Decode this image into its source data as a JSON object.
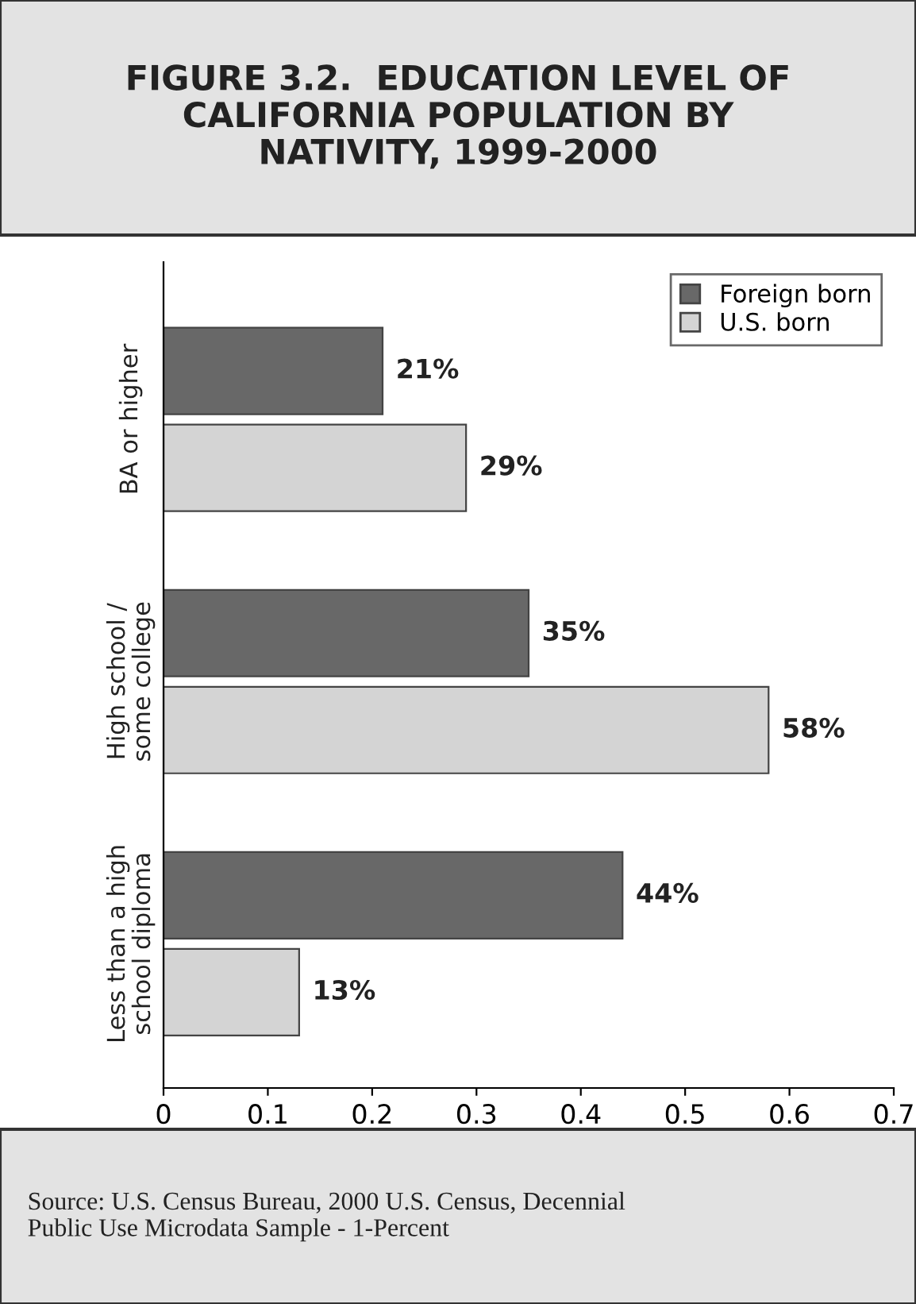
{
  "chart_data": {
    "type": "bar",
    "orientation": "horizontal",
    "title": "FIGURE 3.2.  EDUCATION LEVEL OF\nCALIFORNIA POPULATION BY\nNATIVITY, 1999-2000",
    "categories": [
      "BA or higher",
      "High school /\nsome college",
      "Less than a high\nschool diploma"
    ],
    "series": [
      {
        "name": "Foreign born",
        "color": "#686868",
        "values": [
          0.21,
          0.35,
          0.44
        ],
        "value_labels": [
          "21%",
          "35%",
          "44%"
        ]
      },
      {
        "name": "U.S. born",
        "color": "#d4d4d4",
        "values": [
          0.29,
          0.58,
          0.13
        ],
        "value_labels": [
          "29%",
          "58%",
          "13%"
        ]
      }
    ],
    "xlim": [
      0,
      0.7
    ],
    "xticks": [
      0,
      0.1,
      0.2,
      0.3,
      0.4,
      0.5,
      0.6,
      0.7
    ],
    "grid": false,
    "legend": "top right",
    "annotations": [
      "Source: U.S. Census Bureau, 2000 U.S. Census, Decennial\nPublic Use Microdata Sample - 1-Percent"
    ]
  }
}
